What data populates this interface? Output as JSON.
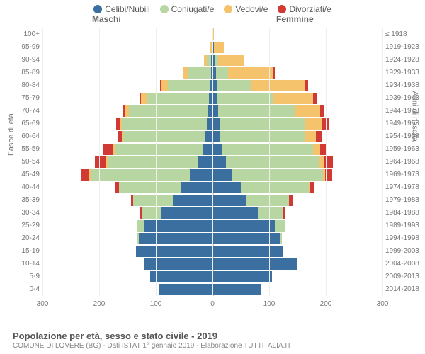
{
  "legend": [
    {
      "label": "Celibi/Nubili",
      "color": "#3a6fa0"
    },
    {
      "label": "Coniugati/e",
      "color": "#b8d6a2"
    },
    {
      "label": "Vedovi/e",
      "color": "#f5c36b"
    },
    {
      "label": "Divorziati/e",
      "color": "#d13a34"
    }
  ],
  "headers": {
    "male": "Maschi",
    "female": "Femmine"
  },
  "axis_left_label": "Fasce di età",
  "axis_right_label": "Anni di nascita",
  "x_ticks_left": [
    300,
    200,
    100,
    0
  ],
  "x_ticks_right": [
    0,
    100,
    200,
    300
  ],
  "x_max": 300,
  "footer_title": "Popolazione per età, sesso e stato civile - 2019",
  "footer_sub": "COMUNE DI LOVERE (BG) - Dati ISTAT 1° gennaio 2019 - Elaborazione TUTTITALIA.IT",
  "rows": [
    {
      "age": "100+",
      "birth": "≤ 1918",
      "m": [
        0,
        0,
        0,
        0
      ],
      "f": [
        0,
        0,
        3,
        0
      ]
    },
    {
      "age": "95-99",
      "birth": "1919-1923",
      "m": [
        0,
        0,
        5,
        0
      ],
      "f": [
        2,
        0,
        18,
        0
      ]
    },
    {
      "age": "90-94",
      "birth": "1924-1928",
      "m": [
        2,
        8,
        5,
        0
      ],
      "f": [
        4,
        6,
        45,
        0
      ]
    },
    {
      "age": "85-89",
      "birth": "1929-1933",
      "m": [
        3,
        40,
        10,
        0
      ],
      "f": [
        6,
        22,
        80,
        2
      ]
    },
    {
      "age": "80-84",
      "birth": "1934-1938",
      "m": [
        4,
        75,
        12,
        2
      ],
      "f": [
        8,
        60,
        95,
        6
      ]
    },
    {
      "age": "75-79",
      "birth": "1939-1943",
      "m": [
        6,
        110,
        10,
        3
      ],
      "f": [
        8,
        100,
        70,
        6
      ]
    },
    {
      "age": "70-74",
      "birth": "1944-1948",
      "m": [
        8,
        140,
        6,
        4
      ],
      "f": [
        10,
        135,
        45,
        8
      ]
    },
    {
      "age": "65-69",
      "birth": "1949-1953",
      "m": [
        10,
        150,
        4,
        6
      ],
      "f": [
        12,
        150,
        30,
        14
      ]
    },
    {
      "age": "60-64",
      "birth": "1954-1958",
      "m": [
        12,
        145,
        3,
        6
      ],
      "f": [
        14,
        150,
        18,
        10
      ]
    },
    {
      "age": "55-59",
      "birth": "1959-1963",
      "m": [
        18,
        155,
        2,
        18
      ],
      "f": [
        18,
        160,
        12,
        12
      ]
    },
    {
      "age": "50-54",
      "birth": "1964-1968",
      "m": [
        25,
        160,
        2,
        20
      ],
      "f": [
        24,
        165,
        8,
        16
      ]
    },
    {
      "age": "45-49",
      "birth": "1969-1973",
      "m": [
        40,
        175,
        2,
        15
      ],
      "f": [
        35,
        160,
        4,
        12
      ]
    },
    {
      "age": "40-44",
      "birth": "1974-1978",
      "m": [
        55,
        110,
        0,
        8
      ],
      "f": [
        50,
        120,
        2,
        8
      ]
    },
    {
      "age": "35-39",
      "birth": "1979-1983",
      "m": [
        70,
        70,
        0,
        4
      ],
      "f": [
        60,
        75,
        0,
        6
      ]
    },
    {
      "age": "30-34",
      "birth": "1984-1988",
      "m": [
        90,
        35,
        0,
        2
      ],
      "f": [
        80,
        45,
        0,
        3
      ]
    },
    {
      "age": "25-29",
      "birth": "1989-1993",
      "m": [
        120,
        12,
        0,
        0
      ],
      "f": [
        110,
        18,
        0,
        0
      ]
    },
    {
      "age": "20-24",
      "birth": "1994-1998",
      "m": [
        130,
        2,
        0,
        0
      ],
      "f": [
        120,
        2,
        0,
        0
      ]
    },
    {
      "age": "15-19",
      "birth": "1999-2003",
      "m": [
        135,
        0,
        0,
        0
      ],
      "f": [
        125,
        0,
        0,
        0
      ]
    },
    {
      "age": "10-14",
      "birth": "2004-2008",
      "m": [
        120,
        0,
        0,
        0
      ],
      "f": [
        150,
        0,
        0,
        0
      ]
    },
    {
      "age": "5-9",
      "birth": "2009-2013",
      "m": [
        110,
        0,
        0,
        0
      ],
      "f": [
        105,
        0,
        0,
        0
      ]
    },
    {
      "age": "0-4",
      "birth": "2014-2018",
      "m": [
        95,
        0,
        0,
        0
      ],
      "f": [
        85,
        0,
        0,
        0
      ]
    }
  ]
}
